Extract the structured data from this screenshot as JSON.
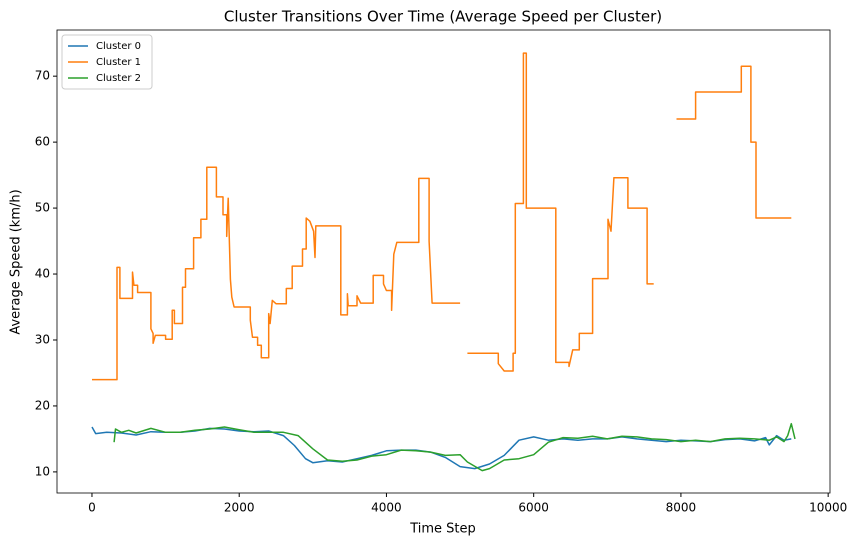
{
  "chart_data": {
    "type": "line",
    "title": "Cluster Transitions Over Time (Average Speed per Cluster)",
    "xlabel": "Time Step",
    "ylabel": "Average Speed (km/h)",
    "xlim": [
      -475,
      10025
    ],
    "ylim": [
      6.8,
      77
    ],
    "xticks": [
      0,
      2000,
      4000,
      6000,
      8000,
      10000
    ],
    "yticks": [
      10,
      20,
      30,
      40,
      50,
      60,
      70
    ],
    "legend": "upper left",
    "series": [
      {
        "name": "Cluster 0",
        "color": "#1f77b4",
        "x": [
          0,
          50,
          200,
          400,
          600,
          800,
          1000,
          1200,
          1400,
          1600,
          1800,
          2000,
          2200,
          2400,
          2600,
          2750,
          2900,
          3000,
          3200,
          3400,
          3600,
          3800,
          4000,
          4200,
          4400,
          4600,
          4800,
          4900,
          5000,
          5200,
          5400,
          5600,
          5800,
          6000,
          6200,
          6400,
          6600,
          6800,
          7000,
          7200,
          7400,
          7600,
          7800,
          8000,
          8200,
          8400,
          8600,
          8800,
          9000,
          9150,
          9200,
          9300,
          9400,
          9500
        ],
        "values": [
          16.8,
          15.8,
          16,
          15.9,
          15.6,
          16.1,
          16,
          16,
          16.2,
          16.6,
          16.5,
          16.2,
          16.1,
          16.2,
          15.5,
          14,
          12,
          11.4,
          11.7,
          11.5,
          12,
          12.5,
          13.2,
          13.3,
          13.3,
          13,
          12.2,
          11.5,
          10.8,
          10.5,
          11.2,
          12.5,
          14.8,
          15.3,
          14.8,
          15,
          14.8,
          15,
          15,
          15.3,
          15,
          14.8,
          14.6,
          14.8,
          14.7,
          14.6,
          14.9,
          15,
          14.7,
          15.2,
          14.1,
          15.5,
          14.8,
          15
        ]
      },
      {
        "name": "Cluster 1",
        "color": "#ff7f0e",
        "x": [
          0,
          340,
          340,
          380,
          380,
          550,
          550,
          570,
          620,
          620,
          800,
          800,
          830,
          830,
          860,
          1000,
          1000,
          1090,
          1090,
          1120,
          1120,
          1230,
          1230,
          1270,
          1270,
          1380,
          1380,
          1480,
          1480,
          1560,
          1560,
          1690,
          1690,
          1780,
          1780,
          1830,
          1830,
          1850,
          1880,
          1900,
          1930,
          2150,
          2150,
          2180,
          2250,
          2250,
          2300,
          2300,
          2400,
          2400,
          2420,
          2450,
          2500,
          2640,
          2640,
          2720,
          2720,
          2860,
          2860,
          2910,
          2910,
          2960,
          3010,
          3030,
          3040,
          3380,
          3380,
          3470,
          3470,
          3480,
          3600,
          3600,
          3650,
          3820,
          3820,
          3960,
          3960,
          4000,
          4070,
          4070,
          4100,
          4140,
          4440,
          4440,
          4580,
          4580,
          4620,
          5000,
          5050,
          5100,
          5520,
          5520,
          5600,
          5720,
          5720,
          5750,
          5750,
          5860,
          5860,
          5900,
          5900,
          6300,
          6300,
          6480,
          6480,
          6530,
          6620,
          6620,
          6800,
          6800,
          7010,
          7010,
          7050,
          7090,
          7280,
          7280,
          7540,
          7540,
          7630,
          7780,
          7940,
          8200,
          8200,
          8820,
          8820,
          8950,
          8950,
          9020,
          9020,
          9500
        ],
        "values": [
          24,
          24,
          41,
          41,
          36.3,
          36.3,
          40.3,
          38.3,
          38.3,
          37.2,
          37.2,
          31.7,
          31,
          29.5,
          30.7,
          30.7,
          30.1,
          30.1,
          34.5,
          34.5,
          32.5,
          32.5,
          38,
          38,
          40.8,
          40.8,
          45.5,
          45.5,
          48.3,
          48.3,
          56.2,
          56.2,
          51.7,
          51.7,
          49,
          49,
          45.7,
          51.5,
          39.2,
          36.5,
          35,
          35,
          33,
          30.4,
          30.4,
          29.2,
          29.2,
          27.3,
          27.3,
          34,
          32.5,
          36,
          35.5,
          35.5,
          37.8,
          37.8,
          41.2,
          41.2,
          43.8,
          43.8,
          48.5,
          48,
          46.5,
          42.5,
          47.3,
          47.3,
          33.8,
          33.8,
          37,
          35.2,
          35.2,
          36.7,
          35.6,
          35.6,
          39.8,
          39.8,
          38.5,
          37.5,
          37.5,
          34.5,
          43,
          44.8,
          44.8,
          54.5,
          54.5,
          45,
          35.6,
          35.6,
          null,
          28,
          28,
          26.4,
          25.3,
          25.3,
          28,
          28,
          50.7,
          50.7,
          73.5,
          73.5,
          50,
          50,
          26.6,
          26.6,
          26,
          28.5,
          28.5,
          31,
          31,
          39.3,
          39.3,
          48.3,
          46.5,
          54.6,
          54.6,
          50,
          50,
          38.5,
          38.5,
          null,
          63.5,
          63.5,
          67.6,
          67.6,
          71.5,
          71.5,
          60,
          60,
          48.5,
          48.5
        ]
      },
      {
        "name": "Cluster 2",
        "color": "#2ca02c",
        "x": [
          300,
          320,
          400,
          500,
          600,
          800,
          1000,
          1200,
          1400,
          1600,
          1800,
          2000,
          2200,
          2400,
          2600,
          2800,
          3000,
          3200,
          3400,
          3600,
          3800,
          4000,
          4200,
          4400,
          4600,
          4800,
          5000,
          5100,
          5300,
          5400,
          5600,
          5800,
          6000,
          6200,
          6400,
          6600,
          6800,
          7000,
          7200,
          7400,
          7600,
          7800,
          8000,
          8200,
          8400,
          8600,
          8800,
          9000,
          9200,
          9300,
          9400,
          9450,
          9500,
          9550
        ],
        "values": [
          14.5,
          16.5,
          16,
          16.3,
          15.9,
          16.6,
          16,
          16,
          16.3,
          16.5,
          16.8,
          16.4,
          16,
          16,
          16,
          15.5,
          13.5,
          11.8,
          11.6,
          11.8,
          12.4,
          12.6,
          13.3,
          13.2,
          13,
          12.5,
          12.6,
          11.5,
          10.2,
          10.5,
          11.8,
          12,
          12.6,
          14.5,
          15.2,
          15.1,
          15.4,
          15,
          15.4,
          15.3,
          15,
          14.9,
          14.6,
          14.8,
          14.6,
          15,
          15.1,
          15,
          14.8,
          15.3,
          14.6,
          15.5,
          17.3,
          15
        ]
      }
    ]
  }
}
